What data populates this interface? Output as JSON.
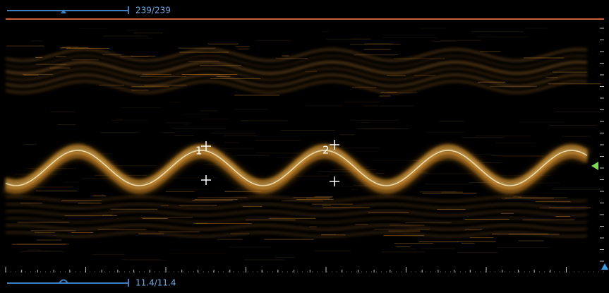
{
  "top_bar": {
    "counter": "239/239"
  },
  "bottom_bar": {
    "counter": "11.4/11.4"
  },
  "markers": [
    {
      "label": "1"
    },
    {
      "label": "2"
    }
  ]
}
